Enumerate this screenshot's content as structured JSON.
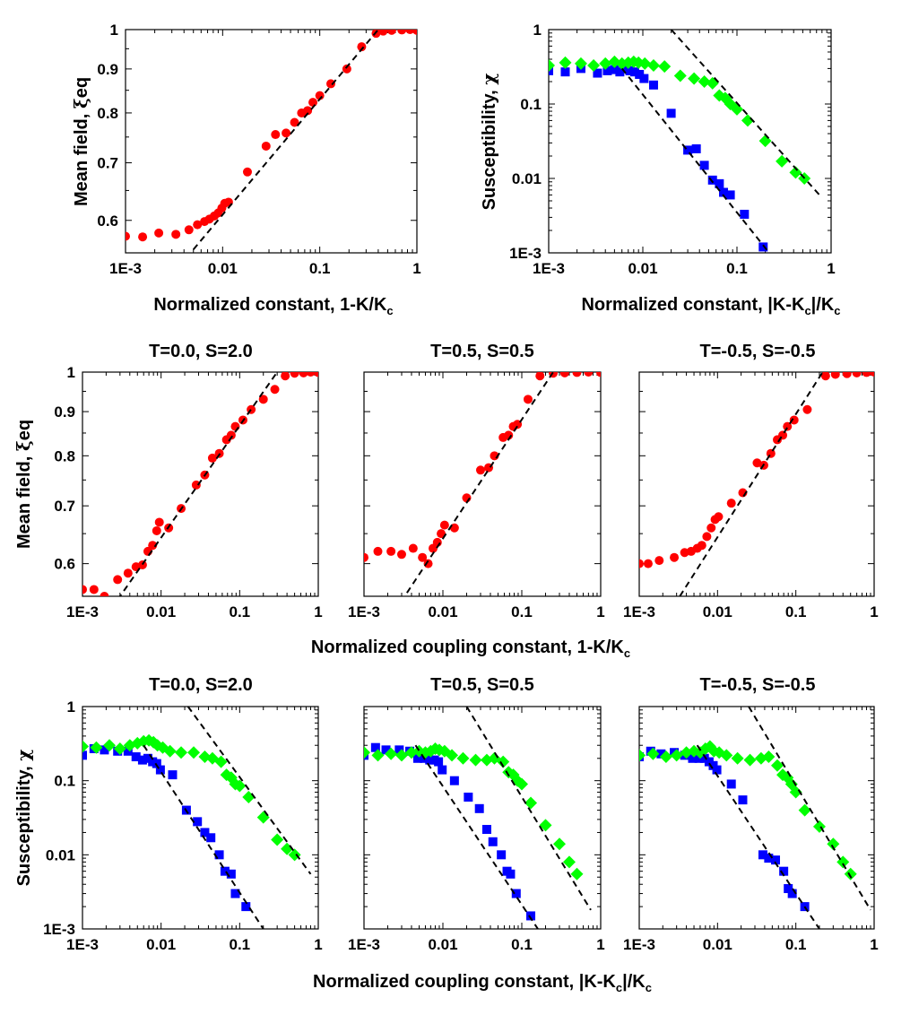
{
  "shared": {
    "x_ticks": [
      0.001,
      0.01,
      0.1,
      1
    ],
    "x_tick_labels": [
      "1E-3",
      "0.01",
      "0.1",
      "1"
    ],
    "mf_y_ticks": [
      0.6,
      0.7,
      0.8,
      0.9,
      1.0
    ],
    "mf_y_tick_labels": [
      "0.6",
      "0.7",
      "0.8",
      "0.9",
      "1"
    ],
    "sus_y_ticks": [
      0.001,
      0.01,
      0.1,
      1
    ],
    "sus_y_tick_labels": [
      "1E-3",
      "0.01",
      "0.1",
      "1"
    ],
    "colors": {
      "mean_field": "#ff0000",
      "square_series": "#0000ff",
      "diamond_series": "#00ff00",
      "fit_line": "#000000"
    }
  },
  "labels": {
    "top_left_xlabel_main": "Normalized constant, 1-K/K",
    "top_left_xlabel_sub": "c",
    "top_right_xlabel_main": "Normalized constant, |K-K",
    "top_right_xlabel_sub": "c",
    "top_right_xlabel_tail": "|/K",
    "top_right_xlabel_sub2": "c",
    "mid_xlabel_main": "Normalized coupling constant, 1-K/K",
    "mid_xlabel_sub": "c",
    "bot_xlabel_main": "Normalized coupling constant, |K-K",
    "bot_xlabel_sub": "c",
    "bot_xlabel_tail": "|/K",
    "bot_xlabel_sub2": "c",
    "mf_ylabel_main": "Mean field, ",
    "mf_ylabel_greek": "ξ",
    "mf_ylabel_tail": "eq",
    "sus_ylabel_main": "Susceptibility, ",
    "sus_ylabel_greek": "χ"
  },
  "chart_data": [
    {
      "id": "a",
      "type": "scatter",
      "title": "",
      "xscale": "log",
      "yscale": "log",
      "xlim": [
        0.001,
        1
      ],
      "ylim": [
        0.55,
        1.0
      ],
      "series": [
        {
          "name": "mean field",
          "marker": "circle",
          "x": [
            0.001,
            0.0015,
            0.0022,
            0.0033,
            0.0045,
            0.0055,
            0.0065,
            0.0073,
            0.0082,
            0.009,
            0.0098,
            0.0105,
            0.0115,
            0.018,
            0.028,
            0.035,
            0.045,
            0.055,
            0.065,
            0.075,
            0.085,
            0.1,
            0.13,
            0.19,
            0.27,
            0.38,
            0.45,
            0.55,
            0.7,
            0.85,
            1.0
          ],
          "y": [
            0.575,
            0.574,
            0.58,
            0.578,
            0.585,
            0.593,
            0.598,
            0.602,
            0.607,
            0.612,
            0.62,
            0.628,
            0.63,
            0.683,
            0.732,
            0.755,
            0.758,
            0.78,
            0.8,
            0.805,
            0.823,
            0.838,
            0.865,
            0.9,
            0.955,
            0.99,
            0.996,
            0.998,
            0.999,
            1.0,
            0.998
          ]
        },
        {
          "name": "fit",
          "line": "dashed",
          "x": [
            0.005,
            0.4
          ],
          "y": [
            0.555,
            1.0
          ]
        }
      ]
    },
    {
      "id": "b",
      "type": "scatter",
      "title": "",
      "xscale": "log",
      "yscale": "log",
      "xlim": [
        0.001,
        1
      ],
      "ylim": [
        0.001,
        1
      ],
      "series": [
        {
          "name": "squares",
          "marker": "square",
          "x": [
            0.001,
            0.0015,
            0.0022,
            0.0033,
            0.0042,
            0.005,
            0.0057,
            0.0065,
            0.0073,
            0.0082,
            0.0092,
            0.0103,
            0.013,
            0.02,
            0.03,
            0.037,
            0.045,
            0.055,
            0.065,
            0.072,
            0.085,
            0.12,
            0.19
          ],
          "y": [
            0.28,
            0.27,
            0.3,
            0.26,
            0.28,
            0.29,
            0.27,
            0.3,
            0.28,
            0.27,
            0.25,
            0.22,
            0.18,
            0.075,
            0.024,
            0.025,
            0.015,
            0.0095,
            0.0085,
            0.0065,
            0.006,
            0.0033,
            0.0012
          ]
        },
        {
          "name": "diamonds",
          "marker": "diamond",
          "x": [
            0.001,
            0.0015,
            0.0022,
            0.003,
            0.004,
            0.005,
            0.006,
            0.007,
            0.008,
            0.009,
            0.0105,
            0.013,
            0.017,
            0.025,
            0.035,
            0.045,
            0.055,
            0.065,
            0.075,
            0.085,
            0.1,
            0.13,
            0.2,
            0.3,
            0.42,
            0.52
          ],
          "y": [
            0.33,
            0.36,
            0.35,
            0.33,
            0.35,
            0.37,
            0.35,
            0.36,
            0.37,
            0.36,
            0.35,
            0.33,
            0.32,
            0.24,
            0.22,
            0.2,
            0.19,
            0.13,
            0.12,
            0.1,
            0.085,
            0.06,
            0.032,
            0.017,
            0.012,
            0.01
          ]
        },
        {
          "name": "fit squares",
          "line": "dashed",
          "x": [
            0.006,
            0.22
          ],
          "y": [
            0.3,
            0.001
          ]
        },
        {
          "name": "fit diamonds",
          "line": "dashed",
          "x": [
            0.02,
            0.8
          ],
          "y": [
            1.0,
            0.0055
          ]
        }
      ]
    },
    {
      "id": "c",
      "type": "scatter",
      "title": "T=0.0, S=2.0",
      "xscale": "log",
      "yscale": "log",
      "xlim": [
        0.001,
        1
      ],
      "ylim": [
        0.55,
        1.0
      ],
      "series": [
        {
          "name": "mean field",
          "marker": "circle",
          "x": [
            0.001,
            0.0014,
            0.0019,
            0.0028,
            0.0038,
            0.0048,
            0.0058,
            0.0068,
            0.0078,
            0.0088,
            0.0095,
            0.0125,
            0.018,
            0.028,
            0.036,
            0.045,
            0.055,
            0.068,
            0.078,
            0.088,
            0.11,
            0.14,
            0.2,
            0.28,
            0.38,
            0.5,
            0.65,
            0.8,
            1.0
          ],
          "y": [
            0.56,
            0.56,
            0.55,
            0.575,
            0.585,
            0.595,
            0.598,
            0.62,
            0.63,
            0.655,
            0.67,
            0.66,
            0.695,
            0.74,
            0.76,
            0.795,
            0.805,
            0.835,
            0.845,
            0.865,
            0.88,
            0.905,
            0.93,
            0.955,
            0.99,
            0.997,
            0.998,
            1.0,
            0.999
          ]
        },
        {
          "name": "fit",
          "line": "dashed",
          "x": [
            0.0028,
            0.3
          ],
          "y": [
            0.545,
            1.0
          ]
        }
      ]
    },
    {
      "id": "d",
      "type": "scatter",
      "title": "T=0.5, S=0.5",
      "xscale": "log",
      "yscale": "log",
      "xlim": [
        0.001,
        1
      ],
      "ylim": [
        0.55,
        1.0
      ],
      "series": [
        {
          "name": "mean field",
          "marker": "circle",
          "x": [
            0.001,
            0.0015,
            0.0022,
            0.003,
            0.0042,
            0.0055,
            0.0065,
            0.0075,
            0.0085,
            0.0095,
            0.0105,
            0.014,
            0.02,
            0.03,
            0.038,
            0.045,
            0.058,
            0.068,
            0.078,
            0.088,
            0.12,
            0.17,
            0.25,
            0.35,
            0.5,
            0.7,
            1.0
          ],
          "y": [
            0.61,
            0.62,
            0.62,
            0.615,
            0.625,
            0.61,
            0.6,
            0.625,
            0.635,
            0.65,
            0.665,
            0.66,
            0.715,
            0.77,
            0.775,
            0.8,
            0.84,
            0.845,
            0.865,
            0.87,
            0.93,
            0.99,
            0.997,
            0.998,
            0.999,
            1.0,
            0.999
          ]
        },
        {
          "name": "fit",
          "line": "dashed",
          "x": [
            0.0035,
            0.25
          ],
          "y": [
            0.555,
            1.0
          ]
        }
      ]
    },
    {
      "id": "e",
      "type": "scatter",
      "title": "T=-0.5, S=-0.5",
      "xscale": "log",
      "yscale": "log",
      "xlim": [
        0.001,
        1
      ],
      "ylim": [
        0.55,
        1.0
      ],
      "series": [
        {
          "name": "mean field",
          "marker": "circle",
          "x": [
            0.001,
            0.0013,
            0.0018,
            0.0028,
            0.0038,
            0.0046,
            0.0055,
            0.0063,
            0.0073,
            0.0083,
            0.0093,
            0.0103,
            0.015,
            0.021,
            0.032,
            0.039,
            0.048,
            0.058,
            0.068,
            0.078,
            0.095,
            0.14,
            0.24,
            0.32,
            0.45,
            0.6,
            0.8,
            1.0
          ],
          "y": [
            0.6,
            0.6,
            0.605,
            0.61,
            0.618,
            0.62,
            0.625,
            0.63,
            0.645,
            0.66,
            0.675,
            0.68,
            0.705,
            0.725,
            0.785,
            0.78,
            0.805,
            0.835,
            0.845,
            0.865,
            0.88,
            0.905,
            0.99,
            0.994,
            0.996,
            0.998,
            0.999,
            1.0
          ]
        },
        {
          "name": "fit",
          "line": "dashed",
          "x": [
            0.0033,
            0.22
          ],
          "y": [
            0.55,
            1.0
          ]
        }
      ]
    },
    {
      "id": "f",
      "type": "scatter",
      "title": "T=0.0, S=2.0",
      "xscale": "log",
      "yscale": "log",
      "xlim": [
        0.001,
        1
      ],
      "ylim": [
        0.001,
        1
      ],
      "series": [
        {
          "name": "squares",
          "marker": "square",
          "x": [
            0.001,
            0.0014,
            0.0019,
            0.0028,
            0.0038,
            0.0048,
            0.0058,
            0.0068,
            0.0078,
            0.0088,
            0.0098,
            0.014,
            0.021,
            0.029,
            0.036,
            0.043,
            0.055,
            0.065,
            0.078,
            0.088,
            0.12
          ],
          "y": [
            0.22,
            0.27,
            0.26,
            0.25,
            0.25,
            0.21,
            0.19,
            0.2,
            0.18,
            0.17,
            0.14,
            0.12,
            0.04,
            0.028,
            0.02,
            0.017,
            0.01,
            0.006,
            0.0055,
            0.003,
            0.002
          ]
        },
        {
          "name": "diamonds",
          "marker": "diamond",
          "x": [
            0.001,
            0.0015,
            0.0022,
            0.003,
            0.004,
            0.005,
            0.006,
            0.007,
            0.008,
            0.009,
            0.0105,
            0.013,
            0.018,
            0.026,
            0.036,
            0.045,
            0.058,
            0.068,
            0.078,
            0.088,
            0.1,
            0.13,
            0.2,
            0.3,
            0.4,
            0.5
          ],
          "y": [
            0.29,
            0.28,
            0.3,
            0.27,
            0.3,
            0.32,
            0.34,
            0.35,
            0.33,
            0.3,
            0.28,
            0.25,
            0.24,
            0.24,
            0.21,
            0.2,
            0.18,
            0.12,
            0.11,
            0.09,
            0.085,
            0.06,
            0.032,
            0.016,
            0.012,
            0.01
          ]
        },
        {
          "name": "fit squares",
          "line": "dashed",
          "x": [
            0.006,
            0.2
          ],
          "y": [
            0.3,
            0.001
          ]
        },
        {
          "name": "fit diamonds",
          "line": "dashed",
          "x": [
            0.022,
            0.8
          ],
          "y": [
            1.0,
            0.0055
          ]
        }
      ]
    },
    {
      "id": "g",
      "type": "scatter",
      "title": "T=0.5, S=0.5",
      "xscale": "log",
      "yscale": "log",
      "xlim": [
        0.001,
        1
      ],
      "ylim": [
        0.001,
        1
      ],
      "series": [
        {
          "name": "squares",
          "marker": "square",
          "x": [
            0.001,
            0.0014,
            0.0019,
            0.0028,
            0.0038,
            0.0048,
            0.0058,
            0.0068,
            0.0078,
            0.0088,
            0.0098,
            0.014,
            0.021,
            0.029,
            0.036,
            0.043,
            0.055,
            0.065,
            0.072,
            0.085,
            0.13
          ],
          "y": [
            0.22,
            0.28,
            0.26,
            0.26,
            0.25,
            0.2,
            0.2,
            0.19,
            0.19,
            0.18,
            0.14,
            0.1,
            0.06,
            0.042,
            0.022,
            0.015,
            0.01,
            0.006,
            0.0055,
            0.003,
            0.0015
          ]
        },
        {
          "name": "diamonds",
          "marker": "diamond",
          "x": [
            0.001,
            0.0015,
            0.0022,
            0.003,
            0.004,
            0.005,
            0.006,
            0.007,
            0.008,
            0.009,
            0.0105,
            0.013,
            0.018,
            0.026,
            0.036,
            0.045,
            0.058,
            0.068,
            0.078,
            0.088,
            0.1,
            0.13,
            0.2,
            0.3,
            0.4,
            0.5
          ],
          "y": [
            0.24,
            0.22,
            0.23,
            0.22,
            0.24,
            0.25,
            0.24,
            0.25,
            0.27,
            0.26,
            0.25,
            0.22,
            0.2,
            0.19,
            0.19,
            0.2,
            0.18,
            0.13,
            0.12,
            0.1,
            0.09,
            0.05,
            0.025,
            0.014,
            0.008,
            0.0055
          ]
        },
        {
          "name": "fit squares",
          "line": "dashed",
          "x": [
            0.0045,
            0.16
          ],
          "y": [
            0.3,
            0.001
          ]
        },
        {
          "name": "fit diamonds",
          "line": "dashed",
          "x": [
            0.02,
            0.75
          ],
          "y": [
            1.0,
            0.0018
          ]
        }
      ]
    },
    {
      "id": "h",
      "type": "scatter",
      "title": "T=-0.5, S=-0.5",
      "xscale": "log",
      "yscale": "log",
      "xlim": [
        0.001,
        1
      ],
      "ylim": [
        0.001,
        1
      ],
      "series": [
        {
          "name": "squares",
          "marker": "square",
          "x": [
            0.001,
            0.0014,
            0.0019,
            0.0028,
            0.0038,
            0.0048,
            0.0058,
            0.0068,
            0.0078,
            0.0088,
            0.0098,
            0.015,
            0.021,
            0.038,
            0.045,
            0.055,
            0.07,
            0.08,
            0.09,
            0.13
          ],
          "y": [
            0.21,
            0.25,
            0.23,
            0.24,
            0.22,
            0.2,
            0.2,
            0.2,
            0.18,
            0.16,
            0.14,
            0.09,
            0.055,
            0.01,
            0.009,
            0.0085,
            0.006,
            0.0035,
            0.003,
            0.002
          ]
        },
        {
          "name": "diamonds",
          "marker": "diamond",
          "x": [
            0.001,
            0.0015,
            0.0022,
            0.003,
            0.004,
            0.005,
            0.006,
            0.007,
            0.008,
            0.009,
            0.0105,
            0.013,
            0.018,
            0.026,
            0.036,
            0.045,
            0.058,
            0.068,
            0.078,
            0.088,
            0.1,
            0.13,
            0.2,
            0.3,
            0.4,
            0.5
          ],
          "y": [
            0.22,
            0.23,
            0.21,
            0.22,
            0.24,
            0.25,
            0.24,
            0.27,
            0.29,
            0.25,
            0.24,
            0.22,
            0.2,
            0.19,
            0.2,
            0.21,
            0.16,
            0.12,
            0.11,
            0.09,
            0.07,
            0.04,
            0.024,
            0.014,
            0.008,
            0.0055
          ]
        },
        {
          "name": "fit squares",
          "line": "dashed",
          "x": [
            0.0055,
            0.2
          ],
          "y": [
            0.3,
            0.001
          ]
        },
        {
          "name": "fit diamonds",
          "line": "dashed",
          "x": [
            0.025,
            0.9
          ],
          "y": [
            1.0,
            0.0018
          ]
        }
      ]
    }
  ]
}
